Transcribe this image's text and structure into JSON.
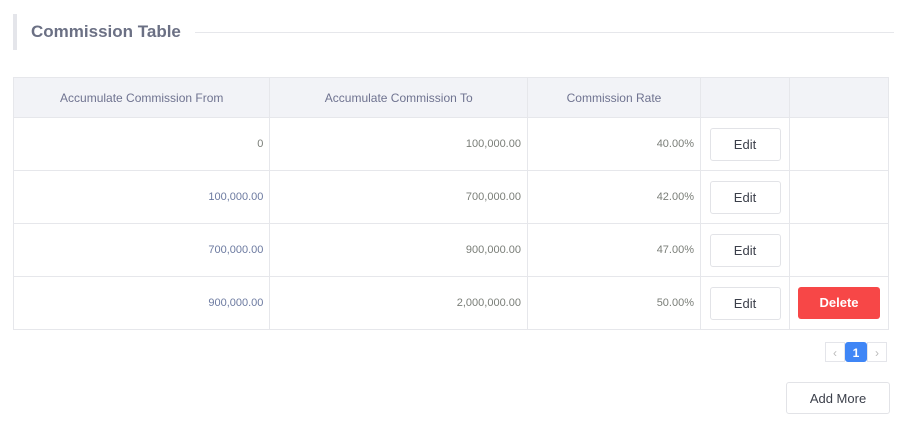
{
  "title": "Commission Table",
  "headers": [
    "Accumulate Commission From",
    "Accumulate Commission To",
    "Commission Rate",
    "",
    ""
  ],
  "rows": [
    {
      "from": "0",
      "to": "100,000.00",
      "rate": "40.00%",
      "edit": "Edit"
    },
    {
      "from": "100,000.00",
      "to": "700,000.00",
      "rate": "42.00%",
      "edit": "Edit"
    },
    {
      "from": "700,000.00",
      "to": "900,000.00",
      "rate": "47.00%",
      "edit": "Edit"
    },
    {
      "from": "900,000.00",
      "to": "2,000,000.00",
      "rate": "50.00%",
      "edit": "Edit",
      "delete": "Delete"
    }
  ],
  "pagination": {
    "prev": "‹",
    "current": "1",
    "next": "›"
  },
  "add_more": "Add More",
  "colors": {
    "delete": "#f74747",
    "page_active": "#3f86f6"
  }
}
